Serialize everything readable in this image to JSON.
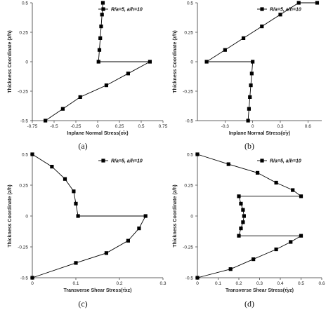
{
  "chart_data": [
    {
      "type": "line",
      "panel_label": "(a)",
      "xlabel": "Inplane Normal Stress(σ̄x)",
      "ylabel": "Thickness Coordinate (z/h)",
      "xlim": [
        -0.75,
        0.75
      ],
      "ylim": [
        -0.5,
        0.5
      ],
      "xticks": [
        -0.75,
        -0.5,
        -0.25,
        0,
        0.25,
        0.5,
        0.75
      ],
      "xtick_labels": [
        "-0.75",
        "-0.5",
        "-0.25",
        "0",
        "0.25",
        "0.5",
        "0.75"
      ],
      "yticks": [
        -0.5,
        -0.25,
        0,
        0.25,
        0.5
      ],
      "ytick_labels": [
        "-0.5",
        "-0.25",
        "0",
        "0.25",
        "0.5"
      ],
      "legend": "top-right",
      "series": [
        {
          "name": "R/a=5, a/h=10",
          "x": [
            -0.6,
            -0.4,
            -0.2,
            0.1,
            0.35,
            0.6,
            0.01,
            0.02,
            0.03,
            0.04,
            0.05,
            0.06
          ],
          "y": [
            -0.5,
            -0.4,
            -0.3,
            -0.2,
            -0.1,
            0,
            0,
            0.1,
            0.2,
            0.3,
            0.4,
            0.5
          ]
        }
      ]
    },
    {
      "type": "line",
      "panel_label": "(b)",
      "xlabel": "Inplane Normal Stress(σ̄y)",
      "ylabel": "Thickness Coordinate (z/h)",
      "xlim": [
        -0.6,
        0.75
      ],
      "ylim": [
        -0.5,
        0.5
      ],
      "xticks": [
        -0.3,
        0,
        0.3,
        0.6
      ],
      "xtick_labels": [
        "-0.3",
        "0",
        "0.3",
        "0.6"
      ],
      "yticks": [
        -0.5,
        -0.25,
        0,
        0.25,
        0.5
      ],
      "ytick_labels": [
        "-0.5",
        "-0.25",
        "0",
        "0.25",
        "0.5"
      ],
      "legend": "top-right",
      "series": [
        {
          "name": "R/a=5, a/h=10",
          "x": [
            -0.05,
            -0.04,
            -0.03,
            -0.02,
            -0.01,
            0,
            -0.5,
            -0.3,
            -0.1,
            0.1,
            0.3,
            0.5,
            0.7
          ],
          "y": [
            -0.5,
            -0.4,
            -0.3,
            -0.2,
            -0.1,
            0,
            0,
            0.1,
            0.2,
            0.3,
            0.4,
            0.5,
            0.5
          ]
        }
      ]
    },
    {
      "type": "line",
      "panel_label": "(c)",
      "xlabel": "Transverse Shear Stress(τ̄xz)",
      "ylabel": "Thickness Coordinate (z/h)",
      "xlim": [
        0,
        0.3
      ],
      "ylim": [
        -0.5,
        0.5
      ],
      "xticks": [
        0,
        0.1,
        0.2,
        0.3
      ],
      "xtick_labels": [
        "0",
        "0.1",
        "0.2",
        "0.3"
      ],
      "yticks": [
        -0.5,
        -0.25,
        0,
        0.25,
        0.5
      ],
      "ytick_labels": [
        "-0.5",
        "-0.25",
        "0",
        "0.25",
        "0.5"
      ],
      "legend": "top-right",
      "series": [
        {
          "name": "R/a=5, a/h=10",
          "x": [
            0,
            0.1,
            0.17,
            0.22,
            0.245,
            0.26,
            0.105,
            0.1,
            0.095,
            0.075,
            0.045,
            0
          ],
          "y": [
            -0.5,
            -0.38,
            -0.3,
            -0.2,
            -0.1,
            0,
            0,
            0.1,
            0.2,
            0.3,
            0.4,
            0.5
          ]
        }
      ]
    },
    {
      "type": "line",
      "panel_label": "(d)",
      "xlabel": "Transverse Shear Stress(τ̄yz)",
      "ylabel": "Thickness Coordinate (z/h)",
      "xlim": [
        0,
        0.6
      ],
      "ylim": [
        -0.5,
        0.5
      ],
      "xticks": [
        0,
        0.1,
        0.2,
        0.3,
        0.4,
        0.5,
        0.6
      ],
      "xtick_labels": [
        "0",
        "0.1",
        "0.2",
        "0.3",
        "0.4",
        "0.5",
        "0.6"
      ],
      "yticks": [
        -0.5,
        -0.25,
        0,
        0.25,
        0.5
      ],
      "ytick_labels": [
        "-0.5",
        "-0.25",
        "0",
        "0.25",
        "0.5"
      ],
      "legend": "top-right",
      "series": [
        {
          "name": "R/a=5, a/h=10",
          "x": [
            0,
            0.16,
            0.27,
            0.38,
            0.45,
            0.5,
            0.2,
            0.21,
            0.22,
            0.225,
            0.22,
            0.21,
            0.2,
            0.5,
            0.46,
            0.38,
            0.29,
            0.15,
            0
          ],
          "y": [
            -0.5,
            -0.43,
            -0.35,
            -0.27,
            -0.21,
            -0.16,
            -0.16,
            -0.1,
            -0.05,
            0,
            0.05,
            0.1,
            0.16,
            0.16,
            0.21,
            0.27,
            0.35,
            0.42,
            0.5
          ]
        }
      ]
    }
  ]
}
